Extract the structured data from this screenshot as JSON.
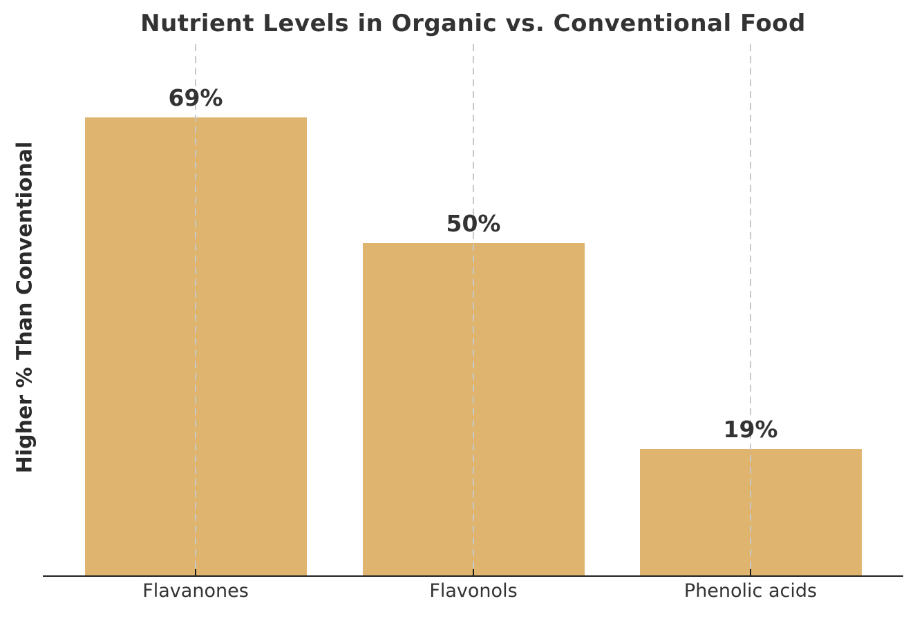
{
  "chart_data": {
    "type": "bar",
    "title": "Nutrient Levels in Organic vs. Conventional Food",
    "categories": [
      "Flavanones",
      "Flavonols",
      "Phenolic acids"
    ],
    "values": [
      69,
      50,
      19
    ],
    "value_labels": [
      "69%",
      "50%",
      "19%"
    ],
    "xlabel": "",
    "ylabel": "Higher % Than Conventional",
    "ylim": [
      0,
      80
    ],
    "grid": "vertical-dashed-at-bar-centers",
    "legend_position": "none",
    "colors": {
      "bar": "#deb46e",
      "title_text": "#333333",
      "value_label_text": "#333333",
      "tick_label_text": "#333333",
      "axis_line": "#1f1f1f",
      "gridline": "#c8c8c8",
      "background": "#ffffff"
    }
  }
}
